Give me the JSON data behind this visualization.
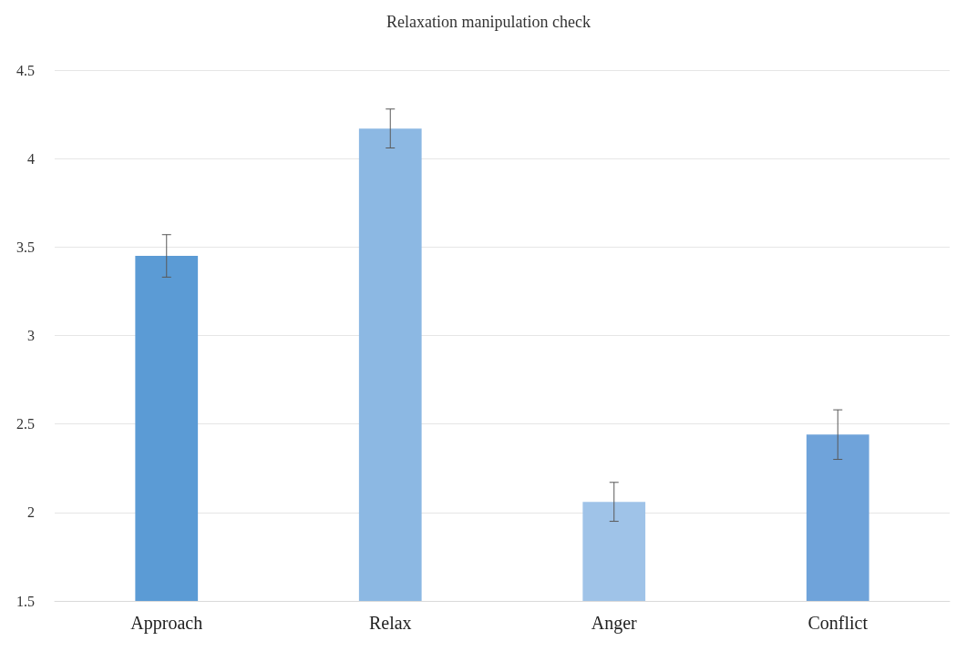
{
  "chart_data": {
    "type": "bar",
    "title": "Relaxation manipulation check",
    "categories": [
      "Approach",
      "Relax",
      "Anger",
      "Conflict"
    ],
    "values": [
      3.45,
      4.17,
      2.06,
      2.44
    ],
    "errors": [
      0.12,
      0.11,
      0.11,
      0.14
    ],
    "colors": [
      "#5b9bd5",
      "#8cb8e3",
      "#9fc3e8",
      "#6fa3da"
    ],
    "ylim": [
      1.5,
      4.5
    ],
    "yticks": [
      1.5,
      2,
      2.5,
      3,
      3.5,
      4,
      4.5
    ],
    "grid": "y"
  }
}
